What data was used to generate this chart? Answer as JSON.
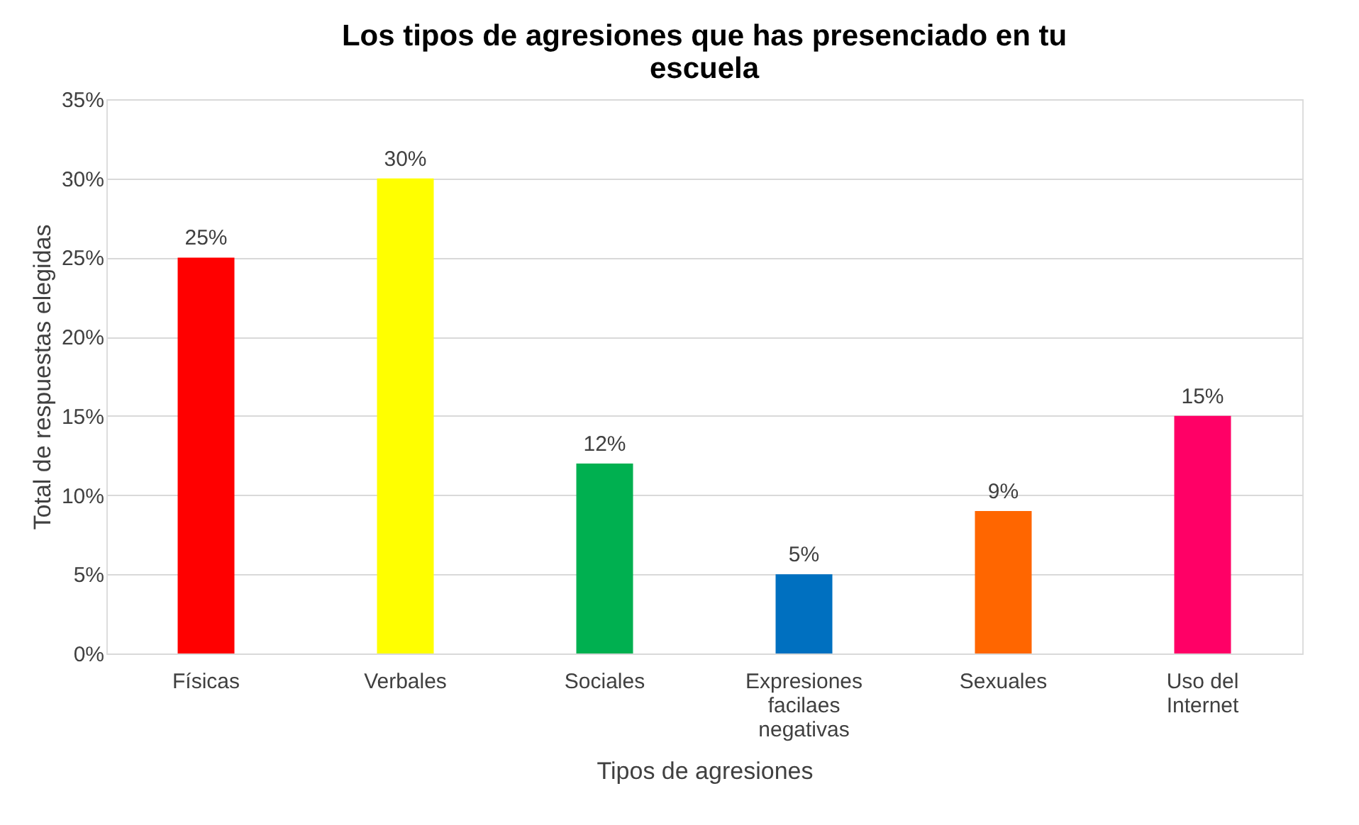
{
  "chart_data": {
    "type": "bar",
    "title": "Los tipos de agresiones que has presenciado en tu escuela",
    "xlabel": "Tipos de agresiones",
    "ylabel": "Total de respuestas elegidas",
    "categories": [
      "Físicas",
      "Verbales",
      "Sociales",
      "Expresiones facilaes negativas",
      "Sexuales",
      "Uso del Internet"
    ],
    "values": [
      25,
      30,
      12,
      5,
      9,
      15
    ],
    "colors": [
      "#ff0000",
      "#ffff00",
      "#00b050",
      "#0070c0",
      "#ff6600",
      "#ff0066"
    ],
    "value_labels": [
      "25%",
      "30%",
      "12%",
      "5%",
      "9%",
      "15%"
    ],
    "ylim": [
      0,
      35
    ],
    "yticks": [
      {
        "value": 0,
        "label": "0%"
      },
      {
        "value": 5,
        "label": "5%"
      },
      {
        "value": 10,
        "label": "10%"
      },
      {
        "value": 15,
        "label": "15%"
      },
      {
        "value": 20,
        "label": "20%"
      },
      {
        "value": 25,
        "label": "25%"
      },
      {
        "value": 30,
        "label": "30%"
      },
      {
        "value": 35,
        "label": "35%"
      }
    ],
    "grid": "y"
  }
}
